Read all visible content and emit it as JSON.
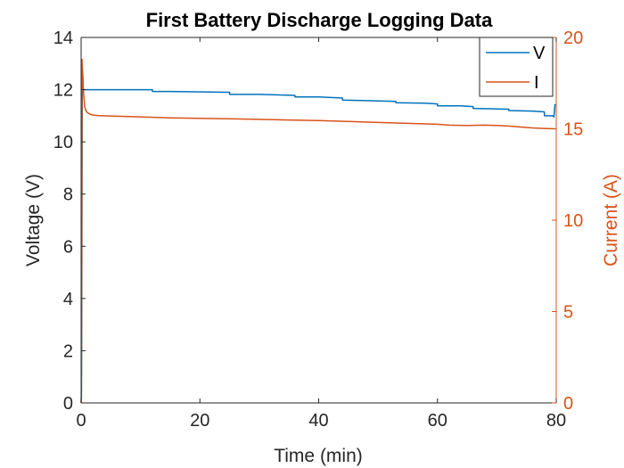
{
  "chart_data": {
    "type": "line",
    "title": "First Battery Discharge Logging Data",
    "xlabel": "Time (min)",
    "ylabel_left": "Voltage (V)",
    "ylabel_right": "Current (A)",
    "xlim": [
      0,
      80
    ],
    "ylim_left": [
      0,
      14
    ],
    "ylim_right": [
      0,
      20
    ],
    "x_ticks": [
      "0",
      "20",
      "40",
      "60",
      "80"
    ],
    "y_ticks_left": [
      "0",
      "2",
      "4",
      "6",
      "8",
      "10",
      "12",
      "14"
    ],
    "y_ticks_right": [
      "0",
      "5",
      "10",
      "15",
      "20"
    ],
    "grid": false,
    "legend_position": "top-right",
    "colors": {
      "voltage": "#0072BD",
      "current": "#D95319",
      "axis": "#262626"
    },
    "series": [
      {
        "name": "V",
        "axis": "left",
        "x": [
          0,
          0.05,
          0.1,
          0.2,
          0.3,
          0.35,
          1,
          5,
          12,
          12.01,
          15,
          25,
          25.01,
          30,
          36,
          36.01,
          40,
          44,
          44.01,
          48,
          53,
          53.01,
          58,
          60,
          60.01,
          64,
          66,
          66.01,
          72,
          72.01,
          76,
          78,
          78.01,
          79.5,
          79.6,
          79.8
        ],
        "values": [
          0,
          0.2,
          3,
          12.8,
          12.5,
          12.0,
          12.0,
          12.0,
          12.0,
          11.93,
          11.93,
          11.9,
          11.82,
          11.82,
          11.78,
          11.72,
          11.72,
          11.68,
          11.6,
          11.58,
          11.55,
          11.5,
          11.48,
          11.45,
          11.38,
          11.38,
          11.35,
          11.28,
          11.25,
          11.2,
          11.18,
          11.15,
          11.0,
          11.0,
          10.95,
          11.45
        ]
      },
      {
        "name": "I",
        "axis": "right",
        "x": [
          0,
          0.05,
          0.1,
          0.15,
          0.3,
          0.45,
          0.6,
          0.8,
          1,
          1.5,
          2,
          3,
          5,
          10,
          15,
          20,
          25,
          30,
          35,
          40,
          45,
          50,
          55,
          60,
          62,
          65,
          68,
          70,
          72,
          74,
          76,
          78,
          79.8
        ],
        "values": [
          0,
          0.5,
          8,
          18.8,
          17.5,
          16.8,
          16.2,
          16.0,
          15.9,
          15.8,
          15.75,
          15.72,
          15.7,
          15.65,
          15.6,
          15.57,
          15.55,
          15.52,
          15.48,
          15.45,
          15.4,
          15.35,
          15.3,
          15.25,
          15.2,
          15.18,
          15.2,
          15.18,
          15.15,
          15.1,
          15.05,
          15.02,
          15.0
        ]
      }
    ]
  }
}
